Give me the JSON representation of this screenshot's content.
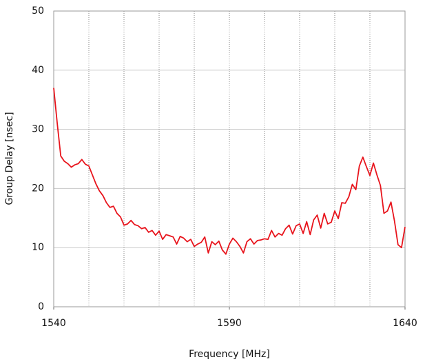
{
  "chart_data": {
    "type": "line",
    "xlabel": "Frequency [MHz]",
    "ylabel": "Group Delay [nsec]",
    "x": [
      1540,
      1541,
      1542,
      1543,
      1544,
      1545,
      1546,
      1547,
      1548,
      1549,
      1550,
      1551,
      1552,
      1553,
      1554,
      1555,
      1556,
      1557,
      1558,
      1559,
      1560,
      1561,
      1562,
      1563,
      1564,
      1565,
      1566,
      1567,
      1568,
      1569,
      1570,
      1571,
      1572,
      1573,
      1574,
      1575,
      1576,
      1577,
      1578,
      1579,
      1580,
      1581,
      1582,
      1583,
      1584,
      1585,
      1586,
      1587,
      1588,
      1589,
      1590,
      1591,
      1592,
      1593,
      1594,
      1595,
      1596,
      1597,
      1598,
      1599,
      1600,
      1601,
      1602,
      1603,
      1604,
      1605,
      1606,
      1607,
      1608,
      1609,
      1610,
      1611,
      1612,
      1613,
      1614,
      1615,
      1616,
      1617,
      1618,
      1619,
      1620,
      1621,
      1622,
      1623,
      1624,
      1625,
      1626,
      1627,
      1628,
      1629,
      1630,
      1631,
      1632,
      1633,
      1634,
      1635,
      1636,
      1637,
      1638,
      1639,
      1640
    ],
    "series": [
      {
        "name": "Group Delay",
        "color": "#e8141c",
        "values": [
          37,
          31,
          25.5,
          24.6,
          24.2,
          23.6,
          24,
          24.2,
          24.9,
          24.1,
          23.8,
          22.3,
          20.8,
          19.6,
          18.8,
          17.6,
          16.8,
          17,
          15.8,
          15.2,
          13.8,
          14,
          14.6,
          13.9,
          13.7,
          13.2,
          13.4,
          12.6,
          12.9,
          12.1,
          12.8,
          11.4,
          12.2,
          12,
          11.8,
          10.6,
          11.9,
          11.6,
          11,
          11.4,
          10.2,
          10.6,
          10.9,
          11.8,
          9.1,
          11,
          10.5,
          11.1,
          9.6,
          8.9,
          10.6,
          11.6,
          11,
          10.2,
          9.1,
          11,
          11.5,
          10.6,
          11.2,
          11.3,
          11.5,
          11.4,
          12.9,
          11.8,
          12.4,
          12.1,
          13.2,
          13.8,
          12.3,
          13.7,
          14,
          12.4,
          14.4,
          12.2,
          14.7,
          15.5,
          13.3,
          15.8,
          14,
          14.3,
          16.2,
          14.9,
          17.6,
          17.5,
          18.6,
          20.7,
          19.8,
          23.8,
          25.3,
          23.7,
          22.2,
          24.3,
          22.3,
          20.5,
          15.8,
          16.2,
          17.7,
          14.5,
          10.5,
          10,
          13.5
        ]
      }
    ],
    "xlim": [
      1540,
      1640
    ],
    "xticks": [
      1540,
      1590,
      1640
    ],
    "x_grid": [
      1550,
      1560,
      1570,
      1580,
      1590,
      1600,
      1610,
      1620,
      1630
    ],
    "ylim": [
      0,
      50
    ],
    "yticks": [
      0,
      10,
      20,
      30,
      40,
      50
    ],
    "grid": true
  }
}
